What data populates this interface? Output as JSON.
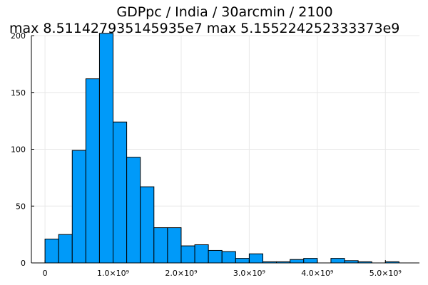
{
  "chart_data": {
    "type": "bar",
    "title_line1": "GDPpc / India / 30arcmin / 2100",
    "title_line2": "max 8.511427935145935e7  max 5.155224252333373e9",
    "xlabel": "",
    "ylabel": "",
    "grid": true,
    "legend": "none",
    "bar_color": "#009af9",
    "bin_width": 200000000,
    "xlim": [
      -200000000,
      5500000000
    ],
    "ylim": [
      0,
      200
    ],
    "bin_starts": [
      0,
      200000000,
      400000000,
      600000000,
      800000000,
      1000000000,
      1200000000,
      1400000000,
      1600000000,
      1800000000,
      2000000000,
      2200000000,
      2400000000,
      2600000000,
      2800000000,
      3000000000,
      3200000000,
      3400000000,
      3600000000,
      3800000000,
      4000000000,
      4200000000,
      4400000000,
      4600000000,
      4800000000,
      5000000000
    ],
    "values": [
      21,
      25,
      99,
      162,
      202,
      124,
      93,
      67,
      31,
      31,
      15,
      16,
      11,
      10,
      4,
      8,
      1,
      1,
      3,
      4,
      0,
      4,
      2,
      1,
      0,
      1
    ],
    "x_ticks": [
      {
        "value": 0,
        "label": "0"
      },
      {
        "value": 1000000000,
        "label": "1.0×10⁹"
      },
      {
        "value": 2000000000,
        "label": "2.0×10⁹"
      },
      {
        "value": 3000000000,
        "label": "3.0×10⁹"
      },
      {
        "value": 4000000000,
        "label": "4.0×10⁹"
      },
      {
        "value": 5000000000,
        "label": "5.0×10⁹"
      }
    ],
    "y_ticks": [
      {
        "value": 0,
        "label": "0"
      },
      {
        "value": 50,
        "label": "50"
      },
      {
        "value": 100,
        "label": "100"
      },
      {
        "value": 150,
        "label": "150"
      },
      {
        "value": 200,
        "label": "200"
      }
    ]
  }
}
